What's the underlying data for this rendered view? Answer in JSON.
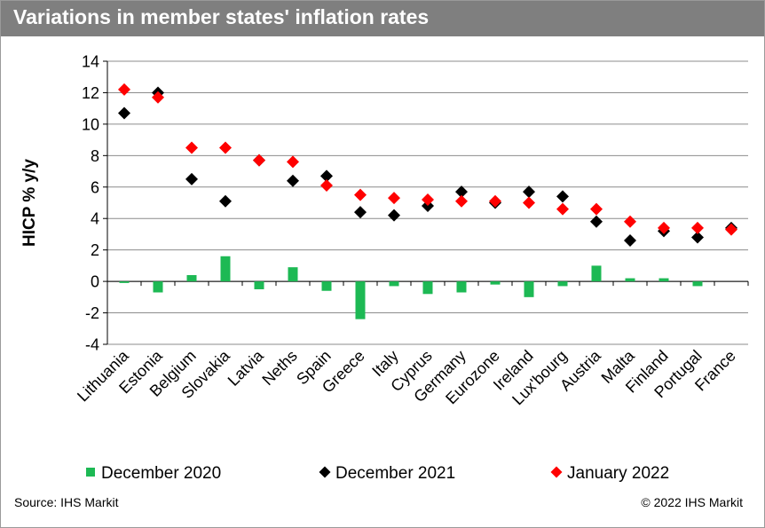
{
  "title": "Variations in member states' inflation rates",
  "footer": {
    "source": "Source: IHS Markit",
    "copyright": "© 2022 IHS Markit"
  },
  "chart_data": {
    "type": "bar",
    "ylabel": "HICP % y/y",
    "xlabel": "",
    "ylim": [
      -4,
      14
    ],
    "yticks": [
      -4,
      -2,
      0,
      2,
      4,
      6,
      8,
      10,
      12,
      14
    ],
    "grid": true,
    "legend_position": "bottom",
    "categories": [
      "Lithuania",
      "Estonia",
      "Belgium",
      "Slovakia",
      "Latvia",
      "Neths",
      "Spain",
      "Greece",
      "Italy",
      "Cyprus",
      "Germany",
      "Eurozone",
      "Ireland",
      "Lux'bourg",
      "Austria",
      "Malta",
      "Finland",
      "Portugal",
      "France"
    ],
    "series": [
      {
        "name": "December 2020",
        "mark": "bar",
        "color": "#1db954",
        "values": [
          -0.1,
          -0.7,
          0.4,
          1.6,
          -0.5,
          0.9,
          -0.6,
          -2.4,
          -0.3,
          -0.8,
          -0.7,
          -0.2,
          -1.0,
          -0.3,
          1.0,
          0.2,
          0.2,
          -0.3,
          0.0
        ]
      },
      {
        "name": "December 2021",
        "mark": "diamond",
        "color": "#000000",
        "values": [
          10.7,
          12.0,
          6.5,
          5.1,
          7.7,
          6.4,
          6.7,
          4.4,
          4.2,
          4.8,
          5.7,
          5.0,
          5.7,
          5.4,
          3.8,
          2.6,
          3.2,
          2.8,
          3.4
        ]
      },
      {
        "name": "January 2022",
        "mark": "diamond",
        "color": "#ff0000",
        "values": [
          12.2,
          11.7,
          8.5,
          8.5,
          7.7,
          7.6,
          6.1,
          5.5,
          5.3,
          5.2,
          5.1,
          5.1,
          5.0,
          4.6,
          4.6,
          3.8,
          3.4,
          3.4,
          3.3
        ]
      }
    ]
  }
}
